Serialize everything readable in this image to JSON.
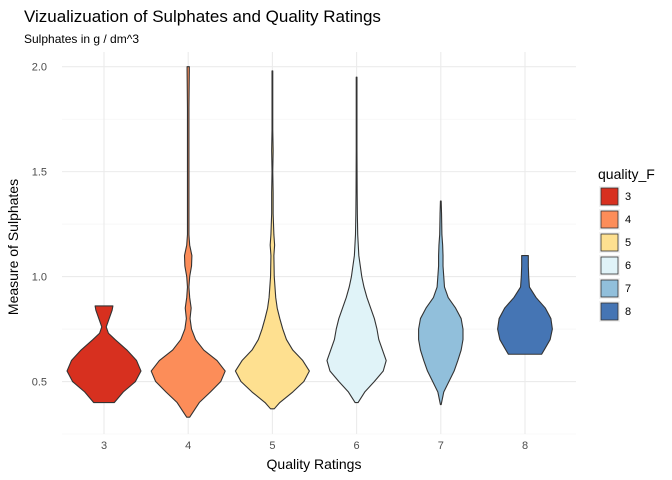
{
  "chart_data": {
    "type": "violin",
    "title": "Vizualizuation of Sulphates and Quality Ratings",
    "subtitle": "Sulphates in g / dm^3",
    "xlabel": "Quality Ratings",
    "ylabel": "Measure of Sulphates",
    "categories": [
      "3",
      "4",
      "5",
      "6",
      "7",
      "8"
    ],
    "yticks": [
      "0.5",
      "1.0",
      "1.5",
      "2.0"
    ],
    "ylim": [
      0.25,
      2.07
    ],
    "grid": true,
    "legend": {
      "title": "quality_F",
      "placement": "right",
      "items": [
        "3",
        "4",
        "5",
        "6",
        "7",
        "8"
      ]
    },
    "colors": [
      "#d7301f",
      "#fc8d59",
      "#fee090",
      "#e0f3f8",
      "#91bfdb",
      "#4575b4"
    ],
    "violins": [
      {
        "quality": "3",
        "profile": [
          [
            0.4,
            0.28
          ],
          [
            0.45,
            0.52
          ],
          [
            0.5,
            0.85
          ],
          [
            0.55,
            1.0
          ],
          [
            0.6,
            0.88
          ],
          [
            0.65,
            0.62
          ],
          [
            0.7,
            0.3
          ],
          [
            0.73,
            0.12
          ],
          [
            0.76,
            0.06
          ],
          [
            0.8,
            0.14
          ],
          [
            0.84,
            0.22
          ],
          [
            0.86,
            0.24
          ]
        ]
      },
      {
        "quality": "4",
        "profile": [
          [
            0.33,
            0.04
          ],
          [
            0.4,
            0.3
          ],
          [
            0.45,
            0.6
          ],
          [
            0.5,
            0.88
          ],
          [
            0.55,
            1.0
          ],
          [
            0.6,
            0.78
          ],
          [
            0.65,
            0.42
          ],
          [
            0.7,
            0.2
          ],
          [
            0.75,
            0.09
          ],
          [
            0.8,
            0.05
          ],
          [
            0.85,
            0.08
          ],
          [
            0.9,
            0.04
          ],
          [
            0.95,
            0.02
          ],
          [
            1.0,
            0.04
          ],
          [
            1.05,
            0.09
          ],
          [
            1.1,
            0.1
          ],
          [
            1.15,
            0.04
          ],
          [
            1.2,
            0.02
          ],
          [
            1.4,
            0.02
          ],
          [
            1.6,
            0.02
          ],
          [
            1.8,
            0.02
          ],
          [
            1.98,
            0.03
          ],
          [
            2.0,
            0.03
          ]
        ]
      },
      {
        "quality": "5",
        "profile": [
          [
            0.37,
            0.05
          ],
          [
            0.4,
            0.2
          ],
          [
            0.45,
            0.55
          ],
          [
            0.5,
            0.85
          ],
          [
            0.55,
            1.0
          ],
          [
            0.6,
            0.82
          ],
          [
            0.65,
            0.55
          ],
          [
            0.7,
            0.38
          ],
          [
            0.75,
            0.28
          ],
          [
            0.8,
            0.2
          ],
          [
            0.85,
            0.13
          ],
          [
            0.9,
            0.09
          ],
          [
            1.0,
            0.05
          ],
          [
            1.1,
            0.04
          ],
          [
            1.15,
            0.06
          ],
          [
            1.2,
            0.04
          ],
          [
            1.3,
            0.02
          ],
          [
            1.4,
            0.02
          ],
          [
            1.5,
            0.01
          ],
          [
            1.6,
            0.02
          ],
          [
            1.7,
            0.01
          ],
          [
            1.8,
            0.01
          ],
          [
            1.98,
            0.01
          ]
        ]
      },
      {
        "quality": "6",
        "profile": [
          [
            0.4,
            0.04
          ],
          [
            0.45,
            0.22
          ],
          [
            0.5,
            0.48
          ],
          [
            0.55,
            0.72
          ],
          [
            0.6,
            0.8
          ],
          [
            0.65,
            0.7
          ],
          [
            0.7,
            0.6
          ],
          [
            0.75,
            0.55
          ],
          [
            0.8,
            0.48
          ],
          [
            0.85,
            0.38
          ],
          [
            0.9,
            0.28
          ],
          [
            0.95,
            0.2
          ],
          [
            1.0,
            0.14
          ],
          [
            1.1,
            0.06
          ],
          [
            1.2,
            0.03
          ],
          [
            1.3,
            0.02
          ],
          [
            1.4,
            0.015
          ],
          [
            1.6,
            0.01
          ],
          [
            1.8,
            0.01
          ],
          [
            1.95,
            0.01
          ]
        ]
      },
      {
        "quality": "7",
        "profile": [
          [
            0.39,
            0.01
          ],
          [
            0.45,
            0.08
          ],
          [
            0.5,
            0.22
          ],
          [
            0.55,
            0.36
          ],
          [
            0.6,
            0.46
          ],
          [
            0.65,
            0.55
          ],
          [
            0.7,
            0.6
          ],
          [
            0.75,
            0.6
          ],
          [
            0.8,
            0.55
          ],
          [
            0.85,
            0.4
          ],
          [
            0.9,
            0.2
          ],
          [
            0.95,
            0.1
          ],
          [
            1.0,
            0.08
          ],
          [
            1.05,
            0.06
          ],
          [
            1.1,
            0.06
          ],
          [
            1.15,
            0.05
          ],
          [
            1.2,
            0.03
          ],
          [
            1.3,
            0.02
          ],
          [
            1.36,
            0.01
          ]
        ]
      },
      {
        "quality": "8",
        "profile": [
          [
            0.63,
            0.45
          ],
          [
            0.66,
            0.55
          ],
          [
            0.7,
            0.68
          ],
          [
            0.75,
            0.74
          ],
          [
            0.8,
            0.7
          ],
          [
            0.85,
            0.55
          ],
          [
            0.9,
            0.3
          ],
          [
            0.95,
            0.12
          ],
          [
            1.0,
            0.1
          ],
          [
            1.05,
            0.09
          ],
          [
            1.1,
            0.09
          ]
        ]
      }
    ]
  }
}
